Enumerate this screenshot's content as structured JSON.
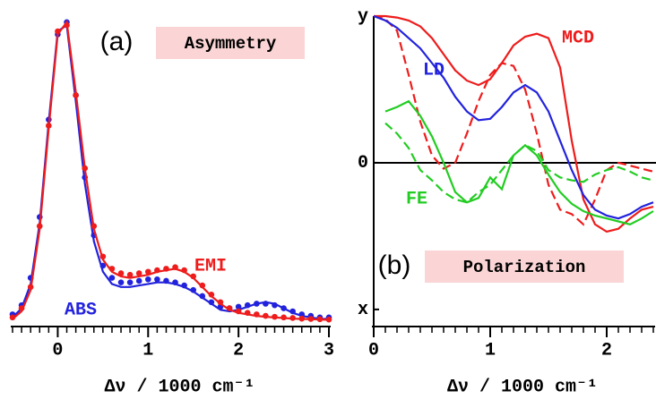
{
  "chart_data": [
    {
      "type": "line",
      "panel_label": "(a)",
      "annotation": "Asymmetry",
      "x_label": "Δν / 1000 cm⁻¹",
      "x": [
        -0.5,
        -0.4,
        -0.3,
        -0.2,
        -0.1,
        0,
        0.1,
        0.2,
        0.3,
        0.4,
        0.5,
        0.6,
        0.7,
        0.8,
        0.9,
        1.0,
        1.1,
        1.2,
        1.3,
        1.4,
        1.5,
        1.6,
        1.7,
        1.8,
        1.9,
        2.0,
        2.1,
        2.2,
        2.3,
        2.4,
        2.5,
        2.6,
        2.7,
        2.8,
        2.9,
        3.0
      ],
      "series": [
        {
          "name": "ABS",
          "color": "#2222dd",
          "values": [
            0.01,
            0.04,
            0.12,
            0.32,
            0.65,
            0.95,
            0.97,
            0.72,
            0.45,
            0.26,
            0.16,
            0.12,
            0.11,
            0.11,
            0.115,
            0.12,
            0.125,
            0.125,
            0.12,
            0.11,
            0.095,
            0.075,
            0.055,
            0.035,
            0.03,
            0.035,
            0.045,
            0.055,
            0.06,
            0.055,
            0.04,
            0.025,
            0.015,
            0.01,
            0.005,
            0.005
          ],
          "marker_values": [
            0.02,
            0.05,
            0.14,
            0.34,
            0.66,
            0.94,
            0.98,
            0.74,
            0.47,
            0.28,
            0.18,
            0.14,
            0.125,
            0.125,
            0.13,
            0.135,
            0.135,
            0.13,
            0.125,
            0.115,
            0.1,
            0.08,
            0.06,
            0.045,
            0.04,
            0.045,
            0.05,
            0.055,
            0.055,
            0.05,
            0.04,
            0.03,
            0.02,
            0.015,
            0.01,
            0.01
          ]
        },
        {
          "name": "EMI",
          "color": "#ee1c1c",
          "values": [
            0.005,
            0.03,
            0.1,
            0.3,
            0.63,
            0.94,
            0.98,
            0.75,
            0.5,
            0.3,
            0.2,
            0.16,
            0.145,
            0.14,
            0.145,
            0.15,
            0.16,
            0.165,
            0.17,
            0.16,
            0.14,
            0.11,
            0.08,
            0.055,
            0.035,
            0.025,
            0.02,
            0.015,
            0.012,
            0.01,
            0.008,
            0.006,
            0.005,
            0.004,
            0.003,
            0.002
          ],
          "marker_values": [
            0.01,
            0.04,
            0.11,
            0.31,
            0.64,
            0.95,
            0.97,
            0.74,
            0.5,
            0.31,
            0.21,
            0.17,
            0.155,
            0.15,
            0.155,
            0.16,
            0.165,
            0.17,
            0.175,
            0.165,
            0.145,
            0.115,
            0.085,
            0.06,
            0.04,
            0.03,
            0.025,
            0.02,
            0.015,
            0.012,
            0.01,
            0.008,
            0.006,
            0.005,
            0.004,
            0.003
          ]
        }
      ],
      "xlim": [
        -0.5,
        3
      ],
      "xticks": [
        0,
        1,
        2,
        3
      ],
      "minor_xticks": [
        -0.5,
        -0.4,
        -0.3,
        -0.2,
        -0.1,
        0.1,
        0.2,
        0.3,
        0.4,
        0.5,
        0.6,
        0.7,
        0.8,
        0.9,
        1.1,
        1.2,
        1.3,
        1.4,
        1.5,
        1.6,
        1.7,
        1.8,
        1.9,
        2.1,
        2.2,
        2.3,
        2.4,
        2.5,
        2.6,
        2.7,
        2.8,
        2.9
      ],
      "ylim": [
        -0.02,
        1
      ]
    },
    {
      "type": "line",
      "panel_label": "(b)",
      "annotation": "Polarization",
      "x_label": "Δν / 1000 cm⁻¹",
      "x": [
        0,
        0.1,
        0.2,
        0.3,
        0.4,
        0.5,
        0.6,
        0.7,
        0.8,
        0.9,
        1.0,
        1.1,
        1.2,
        1.3,
        1.4,
        1.5,
        1.6,
        1.7,
        1.8,
        1.9,
        2.0,
        2.1,
        2.2,
        2.3,
        2.4
      ],
      "series": [
        {
          "name": "MCD",
          "color": "#ee1c1c",
          "values": [
            1.0,
            1.0,
            0.99,
            0.97,
            0.93,
            0.85,
            0.74,
            0.63,
            0.56,
            0.53,
            0.57,
            0.68,
            0.8,
            0.86,
            0.88,
            0.85,
            0.65,
            0.15,
            -0.25,
            -0.42,
            -0.47,
            -0.45,
            -0.38,
            -0.32,
            -0.3
          ],
          "dashed_values": [
            1.0,
            0.98,
            0.9,
            0.6,
            0.28,
            0.05,
            -0.04,
            0.0,
            0.2,
            0.42,
            0.6,
            0.68,
            0.66,
            0.5,
            0.2,
            -0.15,
            -0.32,
            -0.35,
            -0.42,
            -0.25,
            -0.05,
            0.0,
            -0.02,
            -0.04,
            -0.06
          ]
        },
        {
          "name": "LD",
          "color": "#2222dd",
          "values": [
            1.0,
            0.97,
            0.92,
            0.85,
            0.78,
            0.68,
            0.58,
            0.45,
            0.35,
            0.29,
            0.3,
            0.38,
            0.48,
            0.53,
            0.48,
            0.35,
            0.15,
            -0.05,
            -0.22,
            -0.32,
            -0.36,
            -0.38,
            -0.35,
            -0.3,
            -0.27
          ]
        },
        {
          "name": "FE",
          "color": "#22cc22",
          "values": [
            null,
            0.35,
            0.38,
            0.42,
            0.32,
            0.18,
            0.0,
            -0.2,
            -0.27,
            -0.24,
            -0.1,
            -0.18,
            0.05,
            0.12,
            0.05,
            -0.08,
            -0.2,
            -0.28,
            -0.33,
            -0.36,
            -0.38,
            -0.4,
            -0.42,
            -0.38,
            -0.33
          ],
          "dashed_values": [
            null,
            0.27,
            0.2,
            0.1,
            -0.05,
            -0.12,
            -0.2,
            -0.25,
            -0.27,
            -0.2,
            -0.15,
            -0.05,
            0.05,
            0.12,
            0.08,
            -0.05,
            -0.1,
            -0.12,
            -0.13,
            -0.08,
            -0.05,
            -0.03,
            -0.06,
            -0.1,
            -0.12
          ]
        }
      ],
      "xlim": [
        0,
        2.4
      ],
      "xticks": [
        0,
        1,
        2
      ],
      "minor_xticks": [
        0.1,
        0.2,
        0.3,
        0.4,
        0.5,
        0.6,
        0.7,
        0.8,
        0.9,
        1.1,
        1.2,
        1.3,
        1.4,
        1.5,
        1.6,
        1.7,
        1.8,
        1.9,
        2.1,
        2.2,
        2.3,
        2.4
      ],
      "ylim": [
        -1.08,
        1
      ],
      "yticks": [
        {
          "value": 1,
          "label": "y"
        },
        0,
        {
          "value": -1,
          "label": "x"
        }
      ],
      "zero_line": true
    }
  ]
}
